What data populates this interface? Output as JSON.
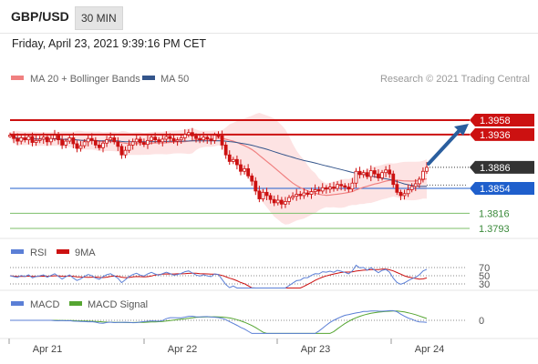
{
  "header": {
    "symbol": "GBP/USD",
    "timeframe": "30 MIN",
    "datetime": "Friday, April 23, 2021 9:39:16 PM CET"
  },
  "colors": {
    "candle": "#cc1111",
    "ma20": "#f08080",
    "bollinger_fill": "#fde0e0",
    "ma50": "#34558b",
    "resistance": "#cc1111",
    "support": "#1f5fcc",
    "target_green": "#7cbf6a",
    "arrow": "#2a5e9e",
    "rsi": "#5b7fd6",
    "rsi_ma": "#cc1111",
    "macd": "#5b7fd6",
    "macd_signal": "#55a531"
  },
  "chart_data": [
    {
      "type": "candlestick",
      "title": "",
      "legend": [
        {
          "name": "MA 20 + Bollinger Bands",
          "color": "#f08080"
        },
        {
          "name": "MA 50",
          "color": "#34558b"
        }
      ],
      "credit": "Research © 2021 Trading Central",
      "x_ticks": [
        "Apr 21",
        "Apr 22",
        "Apr 23",
        "Apr 24"
      ],
      "current_price": 1.3886,
      "levels": [
        {
          "value": 1.3958,
          "label": "1.3958",
          "kind": "resistance"
        },
        {
          "value": 1.3936,
          "label": "1.3936",
          "kind": "resistance"
        },
        {
          "value": 1.3886,
          "label": "1.3886",
          "kind": "current"
        },
        {
          "value": 1.3854,
          "label": "1.3854",
          "kind": "pivot"
        },
        {
          "value": 1.3816,
          "label": "1.3816",
          "kind": "support"
        },
        {
          "value": 1.3793,
          "label": "1.3793",
          "kind": "support"
        }
      ],
      "ohlc_close_approx": [
        1.3935,
        1.393,
        1.3926,
        1.3931,
        1.3928,
        1.3933,
        1.3924,
        1.3927,
        1.3929,
        1.3932,
        1.3925,
        1.393,
        1.3935,
        1.3928,
        1.392,
        1.3926,
        1.3931,
        1.3922,
        1.3915,
        1.3919,
        1.3925,
        1.393,
        1.3927,
        1.392,
        1.3916,
        1.3923,
        1.3928,
        1.3931,
        1.3925,
        1.3918,
        1.3905,
        1.3912,
        1.392,
        1.3925,
        1.3929,
        1.3924,
        1.3921,
        1.3927,
        1.3932,
        1.3928,
        1.3925,
        1.3929,
        1.3933,
        1.393,
        1.3926,
        1.3928,
        1.3931,
        1.3936,
        1.3939,
        1.3934,
        1.393,
        1.3928,
        1.3932,
        1.3929,
        1.3927,
        1.3935,
        1.3934,
        1.392,
        1.3905,
        1.3895,
        1.3898,
        1.389,
        1.388,
        1.3884,
        1.3873,
        1.3865,
        1.385,
        1.3838,
        1.3848,
        1.3843,
        1.3837,
        1.3832,
        1.3836,
        1.383,
        1.3834,
        1.384,
        1.3842,
        1.3845,
        1.3843,
        1.3847,
        1.3845,
        1.3849,
        1.3852,
        1.385,
        1.3855,
        1.3853,
        1.3856,
        1.3854,
        1.386,
        1.3858,
        1.3856,
        1.3853,
        1.3862,
        1.388,
        1.3875,
        1.3878,
        1.3872,
        1.3881,
        1.3876,
        1.387,
        1.3878,
        1.3882,
        1.3876,
        1.386,
        1.3848,
        1.3843,
        1.3846,
        1.3852,
        1.3857,
        1.3861,
        1.3868,
        1.388,
        1.3886
      ],
      "indicators": [
        {
          "name": "RSI",
          "levels": [
            70,
            50,
            30
          ],
          "series": [
            {
              "name": "RSI",
              "color": "#5b7fd6"
            },
            {
              "name": "9MA",
              "color": "#cc1111"
            }
          ]
        },
        {
          "name": "MACD",
          "levels": [
            0
          ],
          "series": [
            {
              "name": "MACD",
              "color": "#5b7fd6"
            },
            {
              "name": "MACD Signal",
              "color": "#55a531"
            }
          ]
        }
      ]
    }
  ]
}
